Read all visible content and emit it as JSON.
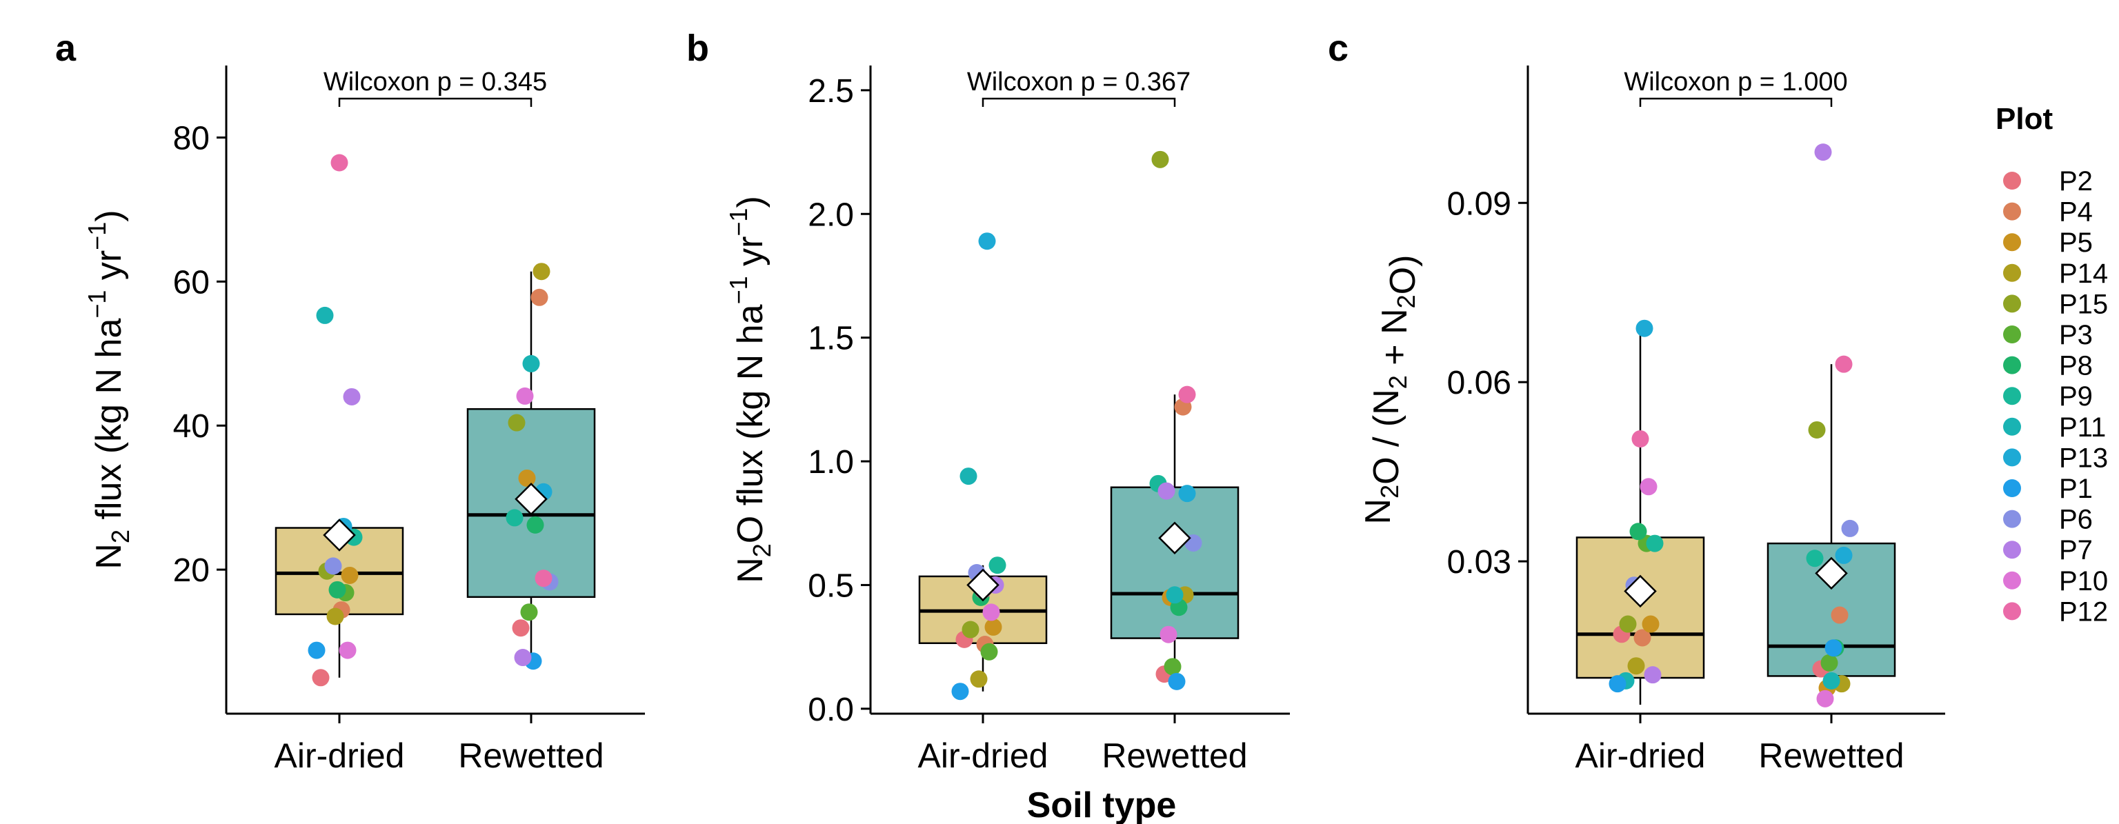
{
  "xlabel": "Soil type",
  "categories": [
    "Air-dried",
    "Rewetted"
  ],
  "box_colors": {
    "Air-dried": "#dfcb8a",
    "Rewetted": "#76b8b4"
  },
  "legend": {
    "title": "Plot",
    "items": [
      {
        "name": "P2",
        "color": "#e8707d"
      },
      {
        "name": "P4",
        "color": "#db8058"
      },
      {
        "name": "P5",
        "color": "#c9931f"
      },
      {
        "name": "P14",
        "color": "#ad9f1e"
      },
      {
        "name": "P15",
        "color": "#8fa423"
      },
      {
        "name": "P3",
        "color": "#5bae33"
      },
      {
        "name": "P8",
        "color": "#1eb36a"
      },
      {
        "name": "P9",
        "color": "#19b89a"
      },
      {
        "name": "P11",
        "color": "#19b3b3"
      },
      {
        "name": "P13",
        "color": "#1eaad5"
      },
      {
        "name": "P1",
        "color": "#1e9ee8"
      },
      {
        "name": "P6",
        "color": "#8690e4"
      },
      {
        "name": "P7",
        "color": "#b37ee6"
      },
      {
        "name": "P10",
        "color": "#de74d6"
      },
      {
        "name": "P12",
        "color": "#ea6aa8"
      }
    ]
  },
  "chart_data": [
    {
      "type": "box",
      "panel": "a",
      "ylabel": {
        "base": "N",
        "sub": "2",
        "rest": " flux (kg N ha",
        "sup1": "−1",
        "mid": " yr",
        "sup2": "−1",
        "end": ")"
      },
      "ylim": [
        0,
        90
      ],
      "yticks": [
        20,
        40,
        60,
        80
      ],
      "tick_labels": [
        "20",
        "40",
        "60",
        "80"
      ],
      "significance": "Wilcoxon p = 0.345",
      "groups": [
        {
          "category": "Air-dried",
          "q1": 13.8,
          "median": 19.5,
          "q3": 25.8,
          "whisker_low": 5.0,
          "whisker_high": 25.8,
          "mean": 24.8,
          "points": [
            {
              "plot": "P2",
              "y": 5.0
            },
            {
              "plot": "P4",
              "y": 14.4
            },
            {
              "plot": "P5",
              "y": 19.2
            },
            {
              "plot": "P14",
              "y": 13.5
            },
            {
              "plot": "P15",
              "y": 19.8
            },
            {
              "plot": "P3",
              "y": 16.8
            },
            {
              "plot": "P8",
              "y": 17.2
            },
            {
              "plot": "P9",
              "y": 24.5
            },
            {
              "plot": "P11",
              "y": 55.3
            },
            {
              "plot": "P13",
              "y": 26.0
            },
            {
              "plot": "P1",
              "y": 8.8
            },
            {
              "plot": "P6",
              "y": 20.5
            },
            {
              "plot": "P7",
              "y": 44.0
            },
            {
              "plot": "P10",
              "y": 8.8
            },
            {
              "plot": "P12",
              "y": 76.5
            }
          ]
        },
        {
          "category": "Rewetted",
          "q1": 16.2,
          "median": 27.6,
          "q3": 42.3,
          "whisker_low": 7.3,
          "whisker_high": 61.4,
          "mean": 29.8,
          "points": [
            {
              "plot": "P2",
              "y": 11.9
            },
            {
              "plot": "P4",
              "y": 57.8
            },
            {
              "plot": "P5",
              "y": 32.7
            },
            {
              "plot": "P14",
              "y": 61.4
            },
            {
              "plot": "P15",
              "y": 40.4
            },
            {
              "plot": "P3",
              "y": 14.1
            },
            {
              "plot": "P8",
              "y": 26.2
            },
            {
              "plot": "P9",
              "y": 27.2
            },
            {
              "plot": "P11",
              "y": 48.6
            },
            {
              "plot": "P13",
              "y": 30.8
            },
            {
              "plot": "P1",
              "y": 7.3
            },
            {
              "plot": "P6",
              "y": 18.3
            },
            {
              "plot": "P7",
              "y": 7.8
            },
            {
              "plot": "P10",
              "y": 44.1
            },
            {
              "plot": "P12",
              "y": 18.8
            }
          ]
        }
      ]
    },
    {
      "type": "box",
      "panel": "b",
      "ylabel": {
        "base": "N",
        "sub": "2",
        "rest": "O flux (kg N ha",
        "sup1": "−1",
        "mid": " yr",
        "sup2": "−1",
        "end": ")"
      },
      "ylim": [
        -0.02,
        2.6
      ],
      "yticks": [
        0.0,
        0.5,
        1.0,
        1.5,
        2.0,
        2.5
      ],
      "tick_labels": [
        "0.0",
        "0.5",
        "1.0",
        "1.5",
        "2.0",
        "2.5"
      ],
      "significance": "Wilcoxon p = 0.367",
      "groups": [
        {
          "category": "Air-dried",
          "q1": 0.265,
          "median": 0.395,
          "q3": 0.535,
          "whisker_low": 0.07,
          "whisker_high": 0.58,
          "mean": 0.5,
          "points": [
            {
              "plot": "P2",
              "y": 0.28
            },
            {
              "plot": "P4",
              "y": 0.26
            },
            {
              "plot": "P5",
              "y": 0.33
            },
            {
              "plot": "P14",
              "y": 0.12
            },
            {
              "plot": "P15",
              "y": 0.32
            },
            {
              "plot": "P3",
              "y": 0.23
            },
            {
              "plot": "P8",
              "y": 0.45
            },
            {
              "plot": "P9",
              "y": 0.58
            },
            {
              "plot": "P11",
              "y": 0.94
            },
            {
              "plot": "P13",
              "y": 1.89
            },
            {
              "plot": "P1",
              "y": 0.07
            },
            {
              "plot": "P6",
              "y": 0.55
            },
            {
              "plot": "P7",
              "y": 0.5
            },
            {
              "plot": "P10",
              "y": 0.39
            },
            {
              "plot": "P12",
              "y": 0.48
            }
          ]
        },
        {
          "category": "Rewetted",
          "q1": 0.285,
          "median": 0.465,
          "q3": 0.895,
          "whisker_low": 0.11,
          "whisker_high": 1.27,
          "mean": 0.69,
          "points": [
            {
              "plot": "P2",
              "y": 0.14
            },
            {
              "plot": "P4",
              "y": 1.22
            },
            {
              "plot": "P5",
              "y": 0.45
            },
            {
              "plot": "P14",
              "y": 0.46
            },
            {
              "plot": "P15",
              "y": 2.22
            },
            {
              "plot": "P3",
              "y": 0.17
            },
            {
              "plot": "P8",
              "y": 0.41
            },
            {
              "plot": "P9",
              "y": 0.91
            },
            {
              "plot": "P11",
              "y": 0.46
            },
            {
              "plot": "P13",
              "y": 0.87
            },
            {
              "plot": "P1",
              "y": 0.11
            },
            {
              "plot": "P6",
              "y": 0.67
            },
            {
              "plot": "P7",
              "y": 0.88
            },
            {
              "plot": "P10",
              "y": 0.3
            },
            {
              "plot": "P12",
              "y": 1.27
            }
          ]
        }
      ]
    },
    {
      "type": "box",
      "panel": "c",
      "ylabel": {
        "kind": "ratio"
      },
      "ylim": [
        0.0045,
        0.113
      ],
      "yticks": [
        0.03,
        0.06,
        0.09
      ],
      "tick_labels": [
        "0.03",
        "0.06",
        "0.09"
      ],
      "significance": "Wilcoxon p = 1.000",
      "groups": [
        {
          "category": "Air-dried",
          "q1": 0.0105,
          "median": 0.0178,
          "q3": 0.034,
          "whisker_low": 0.006,
          "whisker_high": 0.069,
          "mean": 0.025,
          "points": [
            {
              "plot": "P2",
              "y": 0.0178
            },
            {
              "plot": "P4",
              "y": 0.0172
            },
            {
              "plot": "P5",
              "y": 0.0195
            },
            {
              "plot": "P14",
              "y": 0.0125
            },
            {
              "plot": "P15",
              "y": 0.0195
            },
            {
              "plot": "P3",
              "y": 0.033
            },
            {
              "plot": "P8",
              "y": 0.035
            },
            {
              "plot": "P9",
              "y": 0.033
            },
            {
              "plot": "P11",
              "y": 0.01
            },
            {
              "plot": "P13",
              "y": 0.069
            },
            {
              "plot": "P1",
              "y": 0.0095
            },
            {
              "plot": "P6",
              "y": 0.026
            },
            {
              "plot": "P7",
              "y": 0.011
            },
            {
              "plot": "P10",
              "y": 0.0425
            },
            {
              "plot": "P12",
              "y": 0.0505
            }
          ]
        },
        {
          "category": "Rewetted",
          "q1": 0.0108,
          "median": 0.0158,
          "q3": 0.033,
          "whisker_low": 0.007,
          "whisker_high": 0.063,
          "mean": 0.028,
          "points": [
            {
              "plot": "P2",
              "y": 0.012
            },
            {
              "plot": "P4",
              "y": 0.021
            },
            {
              "plot": "P5",
              "y": 0.0088
            },
            {
              "plot": "P14",
              "y": 0.0095
            },
            {
              "plot": "P15",
              "y": 0.052
            },
            {
              "plot": "P3",
              "y": 0.013
            },
            {
              "plot": "P8",
              "y": 0.0155
            },
            {
              "plot": "P9",
              "y": 0.0305
            },
            {
              "plot": "P11",
              "y": 0.01
            },
            {
              "plot": "P13",
              "y": 0.031
            },
            {
              "plot": "P1",
              "y": 0.0155
            },
            {
              "plot": "P6",
              "y": 0.0355
            },
            {
              "plot": "P7",
              "y": 0.0985
            },
            {
              "plot": "P10",
              "y": 0.007
            },
            {
              "plot": "P12",
              "y": 0.063
            }
          ]
        }
      ]
    }
  ]
}
